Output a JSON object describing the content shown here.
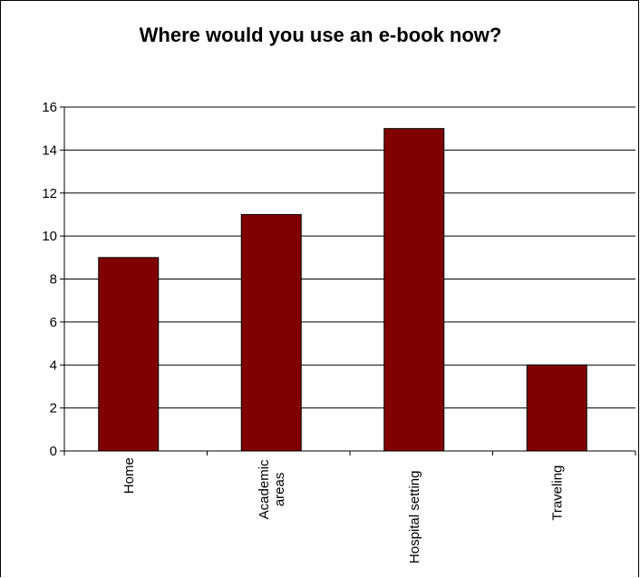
{
  "chart_data": {
    "type": "bar",
    "title": "Where would you use an e-book now?",
    "categories": [
      [
        "Home"
      ],
      [
        "Academic",
        "areas"
      ],
      [
        "Hospital setting"
      ],
      [
        "Traveling"
      ]
    ],
    "values": [
      9,
      11,
      15,
      4
    ],
    "xlabel": "",
    "ylabel": "",
    "ylim": [
      0,
      16
    ],
    "yticks": [
      "0",
      "2",
      "4",
      "6",
      "8",
      "10",
      "12",
      "14",
      "16"
    ],
    "grid": true,
    "legend": "none",
    "colors": {
      "bar_fill": "#800000",
      "bar_stroke": "#000000",
      "gridline": "#000000",
      "axis": "#000000"
    }
  }
}
